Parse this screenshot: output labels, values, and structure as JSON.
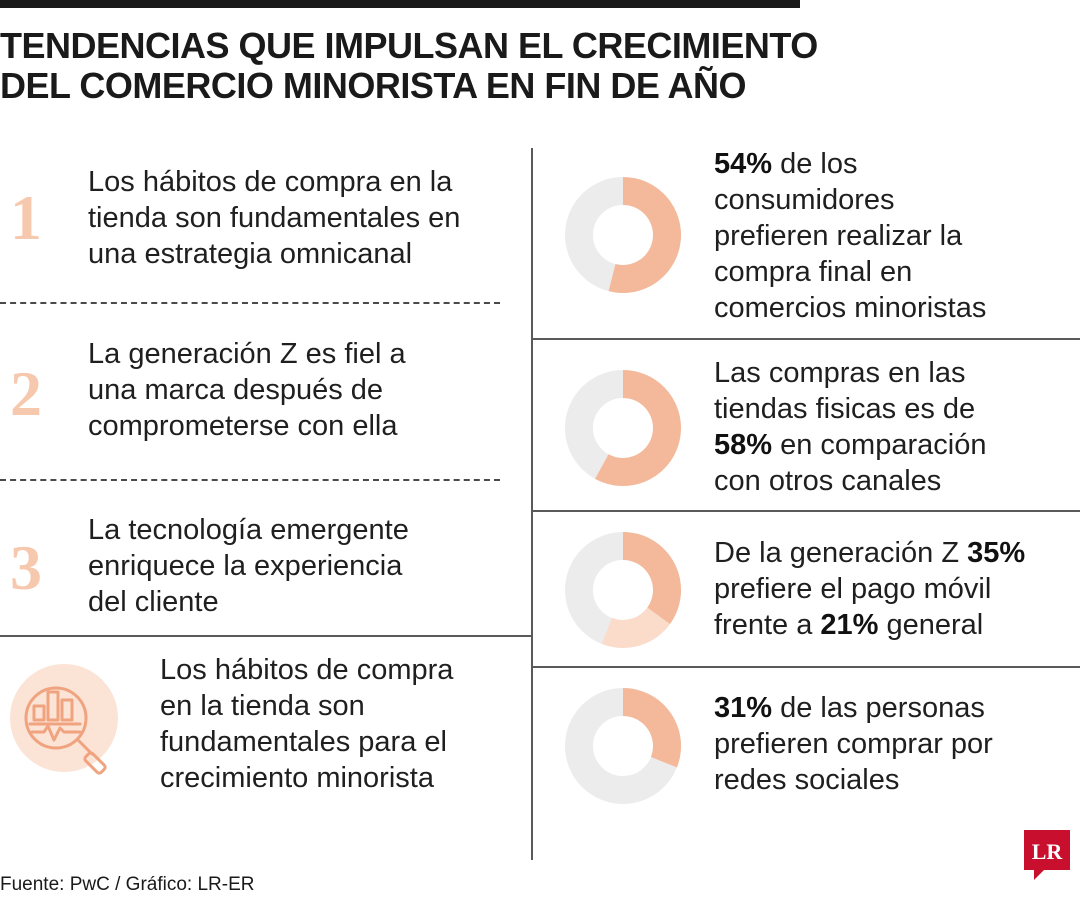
{
  "title": {
    "line1": "TENDENCIAS QUE IMPULSAN EL CRECIMIENTO",
    "line2": "DEL COMERCIO MINORISTA EN FIN DE AÑO"
  },
  "trends": [
    {
      "number": "1",
      "lines": [
        "Los hábitos de compra en la",
        "tienda son fundamentales en",
        "una estrategia omnicanal"
      ]
    },
    {
      "number": "2",
      "lines": [
        "La generación Z es fiel a",
        "una marca después de",
        "comprometerse con ella"
      ]
    },
    {
      "number": "3",
      "lines": [
        "La tecnología emergente",
        "enriquece la experiencia",
        "del cliente"
      ]
    },
    {
      "icon": "analytics-magnifier-icon",
      "lines": [
        "Los hábitos de compra",
        "en la tienda son",
        "fundamentales para el",
        "crecimiento minorista"
      ]
    }
  ],
  "stats": [
    {
      "parts": [
        [
          "54%",
          true
        ],
        [
          " de los",
          false
        ],
        [
          "|",
          false
        ],
        [
          "consumidores",
          false
        ],
        [
          "|",
          false
        ],
        [
          "prefieren realizar la",
          false
        ],
        [
          "|",
          false
        ],
        [
          "compra final en",
          false
        ],
        [
          "|",
          false
        ],
        [
          "comercios minoristas",
          false
        ]
      ]
    },
    {
      "parts": [
        [
          "Las compras en las",
          false
        ],
        [
          "|",
          false
        ],
        [
          "tiendas fisicas es de",
          false
        ],
        [
          "|",
          false
        ],
        [
          "58%",
          true
        ],
        [
          " en comparación",
          false
        ],
        [
          "|",
          false
        ],
        [
          "con otros canales",
          false
        ]
      ]
    },
    {
      "parts": [
        [
          "De la generación Z ",
          false
        ],
        [
          "35%",
          true
        ],
        [
          "|",
          false
        ],
        [
          "prefiere el pago móvil",
          false
        ],
        [
          "|",
          false
        ],
        [
          "frente a ",
          false
        ],
        [
          "21%",
          true
        ],
        [
          " general",
          false
        ]
      ]
    },
    {
      "parts": [
        [
          "31%",
          true
        ],
        [
          " de las personas",
          false
        ],
        [
          "|",
          false
        ],
        [
          "prefieren comprar por",
          false
        ],
        [
          "|",
          false
        ],
        [
          "redes sociales",
          false
        ]
      ]
    }
  ],
  "chart_data": {
    "type": "pie",
    "style": "donut",
    "charts": [
      {
        "values": [
          54
        ],
        "colors": [
          "#f4b99a"
        ]
      },
      {
        "values": [
          58
        ],
        "colors": [
          "#f4b99a"
        ]
      },
      {
        "values": [
          35,
          21
        ],
        "colors": [
          "#f4b99a",
          "#fbdccb"
        ]
      },
      {
        "values": [
          31
        ],
        "colors": [
          "#f4b99a"
        ]
      }
    ],
    "track_color": "#ececec"
  },
  "source": "Fuente: PwC / Gráfico: LR-ER",
  "logo": "LR",
  "colors": {
    "accent": "#f4b99a",
    "accent_light": "#fbdccb",
    "track": "#ececec",
    "number": "#f6c8ad",
    "logo_red": "#c8102e"
  }
}
